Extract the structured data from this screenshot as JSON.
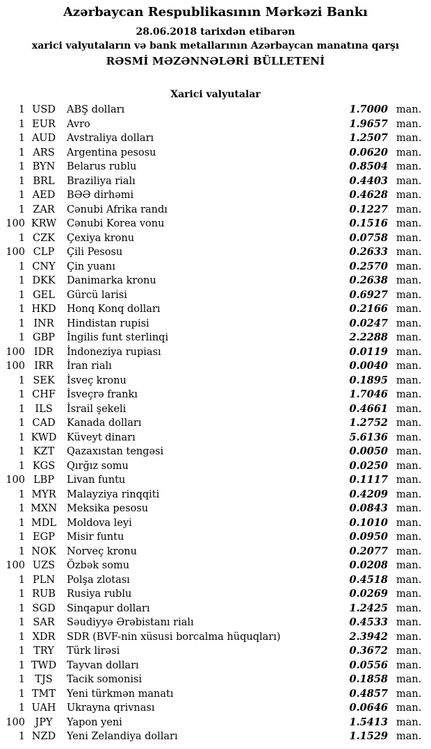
{
  "header": {
    "title": "Azərbaycan Respublikasının Mərkəzi Bankı",
    "date_line": "28.06.2018 tarixdən etibarən",
    "subtitle_line": "xarici valyutaların və bank metallarının Azərbaycan manatına qarşı",
    "bulletin_title": "RƏSMİ MƏZƏNNƏLƏRİ BÜLLETENİ"
  },
  "section": {
    "title": "Xarici valyutalar"
  },
  "rates": [
    {
      "qty": "1",
      "code": "USD",
      "name": "ABŞ dolları",
      "rate": "1.7000",
      "unit": "man."
    },
    {
      "qty": "1",
      "code": "EUR",
      "name": "Avro",
      "rate": "1.9657",
      "unit": "man."
    },
    {
      "qty": "1",
      "code": "AUD",
      "name": "Avstraliya dolları",
      "rate": "1.2507",
      "unit": "man."
    },
    {
      "qty": "1",
      "code": "ARS",
      "name": "Argentina pesosu",
      "rate": "0.0620",
      "unit": "man."
    },
    {
      "qty": "1",
      "code": "BYN",
      "name": "Belarus rublu",
      "rate": "0.8504",
      "unit": "man."
    },
    {
      "qty": "1",
      "code": "BRL",
      "name": "Braziliya rialı",
      "rate": "0.4403",
      "unit": "man."
    },
    {
      "qty": "1",
      "code": "AED",
      "name": "BƏƏ dirhəmi",
      "rate": "0.4628",
      "unit": "man."
    },
    {
      "qty": "1",
      "code": "ZAR",
      "name": "Cənubi Afrika randı",
      "rate": "0.1227",
      "unit": "man."
    },
    {
      "qty": "100",
      "code": "KRW",
      "name": "Cənubi Korea vonu",
      "rate": "0.1516",
      "unit": "man."
    },
    {
      "qty": "1",
      "code": "CZK",
      "name": "Çexiya kronu",
      "rate": "0.0758",
      "unit": "man."
    },
    {
      "qty": "100",
      "code": "CLP",
      "name": "Çili Pesosu",
      "rate": "0.2633",
      "unit": "man."
    },
    {
      "qty": "1",
      "code": "CNY",
      "name": "Çin yuanı",
      "rate": "0.2570",
      "unit": "man."
    },
    {
      "qty": "1",
      "code": "DKK",
      "name": "Danimarka kronu",
      "rate": "0.2638",
      "unit": "man."
    },
    {
      "qty": "1",
      "code": "GEL",
      "name": "Gürcü larisi",
      "rate": "0.6927",
      "unit": "man."
    },
    {
      "qty": "1",
      "code": "HKD",
      "name": "Honq Konq dolları",
      "rate": "0.2166",
      "unit": "man."
    },
    {
      "qty": "1",
      "code": "INR",
      "name": "Hindistan rupisi",
      "rate": "0.0247",
      "unit": "man."
    },
    {
      "qty": "1",
      "code": "GBP",
      "name": "İngilis funt sterlinqi",
      "rate": "2.2288",
      "unit": "man."
    },
    {
      "qty": "100",
      "code": "IDR",
      "name": "İndoneziya rupiası",
      "rate": "0.0119",
      "unit": "man."
    },
    {
      "qty": "100",
      "code": "IRR",
      "name": "İran rialı",
      "rate": "0.0040",
      "unit": "man."
    },
    {
      "qty": "1",
      "code": "SEK",
      "name": "İsveç kronu",
      "rate": "0.1895",
      "unit": "man."
    },
    {
      "qty": "1",
      "code": "CHF",
      "name": "İsveçrə frankı",
      "rate": "1.7046",
      "unit": "man."
    },
    {
      "qty": "1",
      "code": "ILS",
      "name": "İsrail şekeli",
      "rate": "0.4661",
      "unit": "man."
    },
    {
      "qty": "1",
      "code": "CAD",
      "name": "Kanada dolları",
      "rate": "1.2752",
      "unit": "man."
    },
    {
      "qty": "1",
      "code": "KWD",
      "name": "Küveyt dinarı",
      "rate": "5.6136",
      "unit": "man."
    },
    {
      "qty": "1",
      "code": "KZT",
      "name": "Qazaxıstan tengəsi",
      "rate": "0.0050",
      "unit": "man."
    },
    {
      "qty": "1",
      "code": "KGS",
      "name": "Qırğız somu",
      "rate": "0.0250",
      "unit": "man."
    },
    {
      "qty": "100",
      "code": "LBP",
      "name": "Livan funtu",
      "rate": "0.1117",
      "unit": "man."
    },
    {
      "qty": "1",
      "code": "MYR",
      "name": "Malayziya rinqqiti",
      "rate": "0.4209",
      "unit": "man."
    },
    {
      "qty": "1",
      "code": "MXN",
      "name": "Meksika pesosu",
      "rate": "0.0843",
      "unit": "man."
    },
    {
      "qty": "1",
      "code": "MDL",
      "name": "Moldova leyi",
      "rate": "0.1010",
      "unit": "man."
    },
    {
      "qty": "1",
      "code": "EGP",
      "name": "Misir funtu",
      "rate": "0.0950",
      "unit": "man."
    },
    {
      "qty": "1",
      "code": "NOK",
      "name": "Norveç kronu",
      "rate": "0.2077",
      "unit": "man."
    },
    {
      "qty": "100",
      "code": "UZS",
      "name": "Özbək somu",
      "rate": "0.0208",
      "unit": "man."
    },
    {
      "qty": "1",
      "code": "PLN",
      "name": "Polşa zlotası",
      "rate": "0.4518",
      "unit": "man."
    },
    {
      "qty": "1",
      "code": "RUB",
      "name": "Rusiya rublu",
      "rate": "0.0269",
      "unit": "man."
    },
    {
      "qty": "1",
      "code": "SGD",
      "name": "Sinqapur dolları",
      "rate": "1.2425",
      "unit": "man."
    },
    {
      "qty": "1",
      "code": "SAR",
      "name": "Səudiyyə Ərəbistanı rialı",
      "rate": "0.4533",
      "unit": "man."
    },
    {
      "qty": "1",
      "code": "XDR",
      "name": "SDR (BVF-nin xüsusi borcalma hüquqları)",
      "rate": "2.3942",
      "unit": "man."
    },
    {
      "qty": "1",
      "code": "TRY",
      "name": "Türk lirəsi",
      "rate": "0.3672",
      "unit": "man."
    },
    {
      "qty": "1",
      "code": "TWD",
      "name": "Tayvan dolları",
      "rate": "0.0556",
      "unit": "man."
    },
    {
      "qty": "1",
      "code": "TJS",
      "name": "Tacik somonisi",
      "rate": "0.1858",
      "unit": "man."
    },
    {
      "qty": "1",
      "code": "TMT",
      "name": "Yeni türkmən manatı",
      "rate": "0.4857",
      "unit": "man."
    },
    {
      "qty": "1",
      "code": "UAH",
      "name": "Ukrayna qrivnası",
      "rate": "0.0646",
      "unit": "man."
    },
    {
      "qty": "100",
      "code": "JPY",
      "name": "Yapon yeni",
      "rate": "1.5413",
      "unit": "man."
    },
    {
      "qty": "1",
      "code": "NZD",
      "name": "Yeni Zelandiya dolları",
      "rate": "1.1529",
      "unit": "man."
    }
  ]
}
